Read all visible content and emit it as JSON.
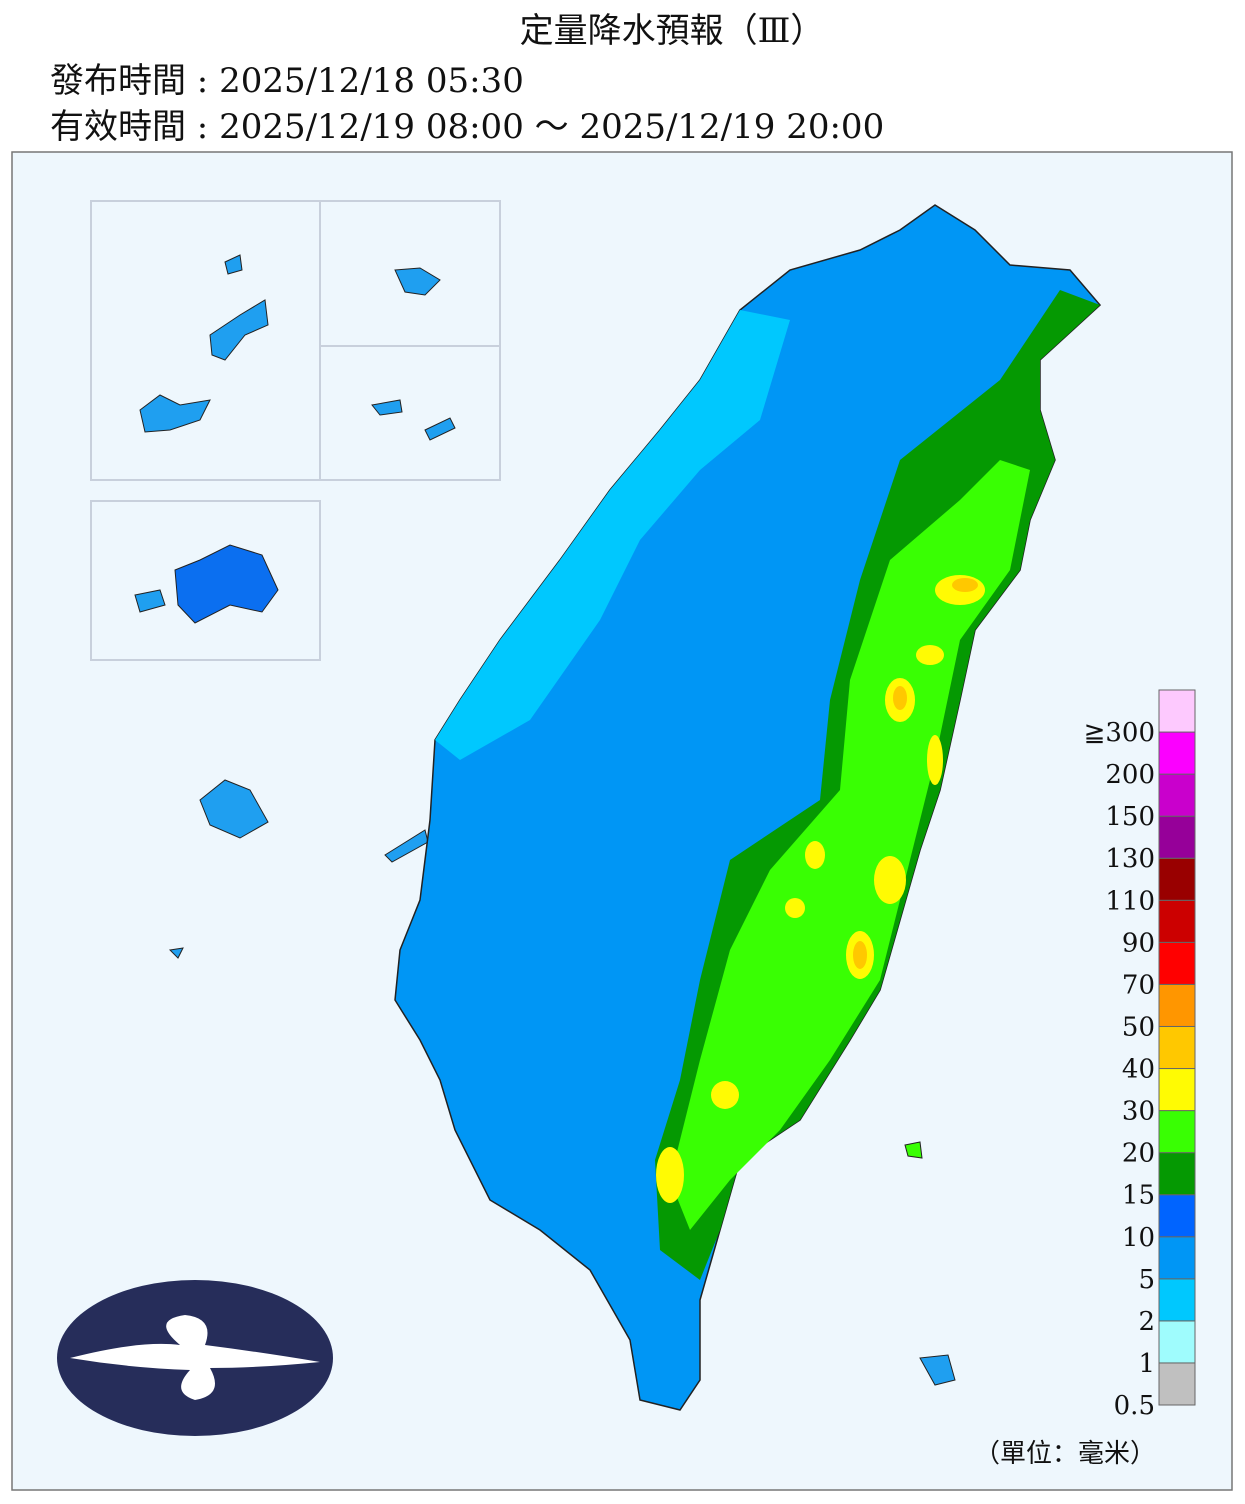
{
  "header": {
    "title": "定量降水預報（Ⅲ）",
    "issued": "發布時間 : 2025/12/18 05:30",
    "valid": "有效時間 : 2025/12/19 08:00 ～ 2025/12/19 20:00"
  },
  "legend": {
    "labels": [
      "0.5",
      "1",
      "2",
      "5",
      "10",
      "15",
      "20",
      "30",
      "40",
      "50",
      "70",
      "90",
      "110",
      "130",
      "150",
      "200",
      "≧300"
    ],
    "colors": [
      "#c0c0c0",
      "#9ffcfd",
      "#00c8fe",
      "#0096f5",
      "#0064ff",
      "#059902",
      "#39ff03",
      "#fffb03",
      "#ffc800",
      "#ff9600",
      "#ff0000",
      "#cc0000",
      "#990000",
      "#960099",
      "#c900cc",
      "#fb00ff",
      "#fdc9fe"
    ],
    "unit": "（單位：毫米）"
  }
}
